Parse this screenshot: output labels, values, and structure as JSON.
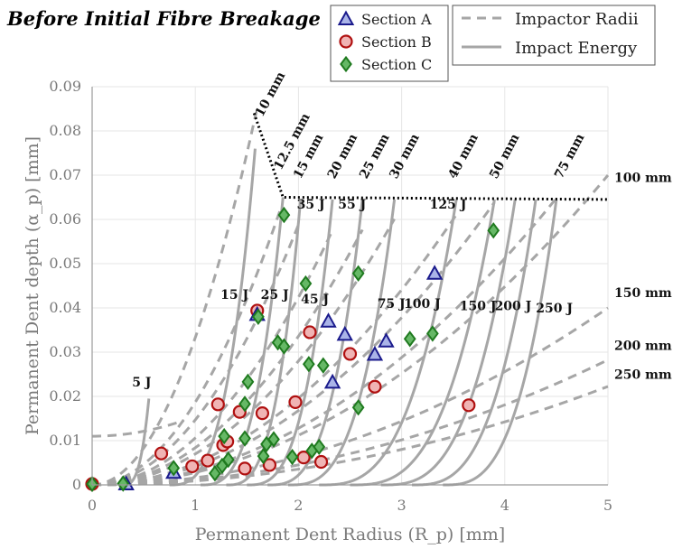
{
  "chart_data": {
    "type": "scatter",
    "title": "Before Initial Fibre Breakage",
    "xlabel": "Permanent Dent Radius (R_p) [mm]",
    "ylabel": "Permanent Dent depth (α_p) [mm]",
    "xlim": [
      0,
      5
    ],
    "ylim": [
      0,
      0.09
    ],
    "xticks": [
      "0",
      "1",
      "2",
      "3",
      "4",
      "5"
    ],
    "yticks": [
      "0",
      "0.01",
      "0.02",
      "0.03",
      "0.04",
      "0.05",
      "0.06",
      "0.07",
      "0.08",
      "0.09"
    ],
    "grid": true,
    "legend_placement": "top",
    "colors": {
      "section_a": "#1a1a8c",
      "section_a_fill": "#aab4e8",
      "section_b": "#b01010",
      "section_b_fill": "#f0b4b4",
      "section_c": "#1f7a1f",
      "section_c_fill": "#66b866",
      "curves": "#a6a6a6",
      "threshold": "#000000"
    },
    "legend": [
      {
        "label": "Section A",
        "marker": "triangle"
      },
      {
        "label": "Section B",
        "marker": "circle"
      },
      {
        "label": "Section C",
        "marker": "diamond"
      },
      {
        "label": "Impactor Radii",
        "style": "dashed"
      },
      {
        "label": "Impact Energy",
        "style": "solid"
      }
    ],
    "series": [
      {
        "name": "Section A",
        "marker": "triangle",
        "points": [
          [
            0.33,
            0.0002
          ],
          [
            0.79,
            0.0028
          ],
          [
            1.6,
            0.0385
          ],
          [
            2.29,
            0.037
          ],
          [
            2.33,
            0.0232
          ],
          [
            2.45,
            0.034
          ],
          [
            2.74,
            0.0295
          ],
          [
            2.85,
            0.0325
          ],
          [
            3.32,
            0.0478
          ]
        ]
      },
      {
        "name": "Section B",
        "marker": "circle",
        "points": [
          [
            0.0,
            0.0002
          ],
          [
            0.67,
            0.0071
          ],
          [
            0.97,
            0.0042
          ],
          [
            1.12,
            0.0055
          ],
          [
            1.22,
            0.0182
          ],
          [
            1.27,
            0.009
          ],
          [
            1.31,
            0.0098
          ],
          [
            1.43,
            0.0165
          ],
          [
            1.48,
            0.0037
          ],
          [
            1.6,
            0.0394
          ],
          [
            1.65,
            0.0162
          ],
          [
            1.72,
            0.0045
          ],
          [
            1.97,
            0.0187
          ],
          [
            2.05,
            0.0062
          ],
          [
            2.11,
            0.0345
          ],
          [
            2.22,
            0.0052
          ],
          [
            2.5,
            0.0296
          ],
          [
            2.74,
            0.0222
          ],
          [
            3.65,
            0.018
          ]
        ]
      },
      {
        "name": "Section C",
        "marker": "diamond",
        "points": [
          [
            0.0,
            0.0002
          ],
          [
            0.3,
            0.0003
          ],
          [
            0.79,
            0.0038
          ],
          [
            1.19,
            0.0026
          ],
          [
            1.26,
            0.0043
          ],
          [
            1.28,
            0.011
          ],
          [
            1.32,
            0.0057
          ],
          [
            1.48,
            0.0105
          ],
          [
            1.48,
            0.0183
          ],
          [
            1.51,
            0.0233
          ],
          [
            1.61,
            0.038
          ],
          [
            1.66,
            0.0065
          ],
          [
            1.69,
            0.0092
          ],
          [
            1.76,
            0.0103
          ],
          [
            1.8,
            0.0322
          ],
          [
            1.86,
            0.0313
          ],
          [
            1.86,
            0.061
          ],
          [
            1.94,
            0.0063
          ],
          [
            2.07,
            0.0455
          ],
          [
            2.1,
            0.0273
          ],
          [
            2.13,
            0.0077
          ],
          [
            2.2,
            0.0086
          ],
          [
            2.24,
            0.027
          ],
          [
            2.58,
            0.0175
          ],
          [
            2.58,
            0.0478
          ],
          [
            3.08,
            0.033
          ],
          [
            3.3,
            0.0342
          ],
          [
            3.89,
            0.0575
          ]
        ]
      }
    ],
    "energy_labels": [
      {
        "text": "5 J",
        "x": 0.48,
        "y": 0.0222
      },
      {
        "text": "15 J",
        "x": 1.38,
        "y": 0.042
      },
      {
        "text": "25 J",
        "x": 1.77,
        "y": 0.042
      },
      {
        "text": "35 J",
        "x": 2.12,
        "y": 0.0625
      },
      {
        "text": "55 J",
        "x": 2.52,
        "y": 0.0625
      },
      {
        "text": "45 J",
        "x": 2.16,
        "y": 0.041
      },
      {
        "text": "75 J",
        "x": 2.9,
        "y": 0.04
      },
      {
        "text": "100 J",
        "x": 3.2,
        "y": 0.04
      },
      {
        "text": "125 J",
        "x": 3.45,
        "y": 0.0625
      },
      {
        "text": "150 J",
        "x": 3.74,
        "y": 0.0395
      },
      {
        "text": "200 J",
        "x": 4.08,
        "y": 0.0395
      },
      {
        "text": "250 J",
        "x": 4.48,
        "y": 0.039
      }
    ],
    "radius_labels_right": [
      {
        "text": "100 mm",
        "y": 0.0685
      },
      {
        "text": "150 mm",
        "y": 0.0425
      },
      {
        "text": "200 mm",
        "y": 0.0305
      },
      {
        "text": "250 mm",
        "y": 0.024
      }
    ],
    "radius_labels_top": [
      {
        "text": "10 mm",
        "x": 1.65,
        "y": 0.083
      },
      {
        "text": "12.5 mm",
        "x": 1.83,
        "y": 0.071
      },
      {
        "text": "15 mm",
        "x": 2.02,
        "y": 0.069
      },
      {
        "text": "20 mm",
        "x": 2.35,
        "y": 0.069
      },
      {
        "text": "25 mm",
        "x": 2.66,
        "y": 0.069
      },
      {
        "text": "30 mm",
        "x": 2.95,
        "y": 0.069
      },
      {
        "text": "40 mm",
        "x": 3.52,
        "y": 0.069
      },
      {
        "text": "50 mm",
        "x": 3.92,
        "y": 0.069
      },
      {
        "text": "75 mm",
        "x": 4.55,
        "y": 0.069
      }
    ],
    "threshold_line": [
      [
        1.57,
        0.084
      ],
      [
        1.85,
        0.065
      ],
      [
        5.0,
        0.0645
      ]
    ],
    "impactor_radius_curves": [
      {
        "radius_mm": 10,
        "k": 0.0333,
        "x_end": 1.59
      },
      {
        "radius_mm": 12.5,
        "k": 0.0187,
        "x_end": 1.82
      },
      {
        "radius_mm": 15,
        "k": 0.0147,
        "x_end": 2.02
      },
      {
        "radius_mm": 20,
        "k": 0.0106,
        "x_end": 2.33
      },
      {
        "radius_mm": 25,
        "k": 0.0084,
        "x_end": 2.62
      },
      {
        "radius_mm": 30,
        "k": 0.007,
        "x_end": 2.93
      },
      {
        "radius_mm": 40,
        "k": 0.0049,
        "x_end": 3.53
      },
      {
        "radius_mm": 50,
        "k": 0.0042,
        "x_end": 3.9
      },
      {
        "radius_mm": 75,
        "k": 0.0032,
        "x_end": 4.5
      },
      {
        "radius_mm": 100,
        "k": 0.0028,
        "x_end": 5.0
      },
      {
        "radius_mm": 150,
        "k": 0.0016,
        "x_end": 5.0
      },
      {
        "radius_mm": 200,
        "k": 0.00113,
        "x_end": 5.0
      },
      {
        "radius_mm": 250,
        "k": 0.00089,
        "x_end": 5.0
      }
    ],
    "upper_bound_curve": {
      "a": 0.011,
      "b": 0.0045
    },
    "impact_energy_curves": [
      {
        "energy_J": 5,
        "x0": 0.3,
        "xt": 0.55,
        "yt": 0.0195
      },
      {
        "energy_J": 15,
        "x0": 0.75,
        "xt": 1.58,
        "yt": 0.076
      },
      {
        "energy_J": 25,
        "x0": 1.05,
        "xt": 1.85,
        "yt": 0.065
      },
      {
        "energy_J": 35,
        "x0": 1.3,
        "xt": 2.02,
        "yt": 0.0645
      },
      {
        "energy_J": 45,
        "x0": 1.5,
        "xt": 2.33,
        "yt": 0.0645
      },
      {
        "energy_J": 55,
        "x0": 1.7,
        "xt": 2.62,
        "yt": 0.0645
      },
      {
        "energy_J": 75,
        "x0": 1.9,
        "xt": 2.93,
        "yt": 0.0645
      },
      {
        "energy_J": 100,
        "x0": 2.2,
        "xt": 3.53,
        "yt": 0.0645
      },
      {
        "energy_J": 125,
        "x0": 2.5,
        "xt": 3.9,
        "yt": 0.0645
      },
      {
        "energy_J": 150,
        "x0": 2.8,
        "xt": 4.1,
        "yt": 0.0645
      },
      {
        "energy_J": 200,
        "x0": 3.1,
        "xt": 4.3,
        "yt": 0.0645
      },
      {
        "energy_J": 250,
        "x0": 3.4,
        "xt": 4.5,
        "yt": 0.0645
      }
    ]
  }
}
